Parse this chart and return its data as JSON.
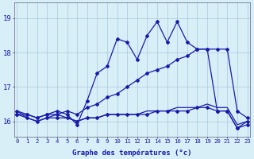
{
  "xlabel": "Graphe des températures (°c)",
  "hours": [
    0,
    1,
    2,
    3,
    4,
    5,
    6,
    7,
    8,
    9,
    10,
    11,
    12,
    13,
    14,
    15,
    16,
    17,
    18,
    19,
    20,
    21,
    22,
    23
  ],
  "line1_spiky": [
    16.3,
    16.2,
    16.1,
    16.2,
    16.3,
    16.2,
    15.9,
    16.6,
    17.4,
    17.6,
    18.4,
    18.3,
    17.8,
    18.5,
    18.9,
    18.3,
    18.9,
    18.3,
    18.1,
    18.1,
    16.3,
    16.3,
    15.8,
    16.0
  ],
  "line2_diag": [
    16.2,
    16.2,
    16.1,
    16.2,
    16.2,
    16.3,
    16.2,
    16.4,
    16.5,
    16.7,
    16.8,
    17.0,
    17.2,
    17.4,
    17.5,
    17.6,
    17.8,
    17.9,
    18.1,
    18.1,
    18.1,
    18.1,
    16.3,
    16.1
  ],
  "line3_flat1": [
    16.2,
    16.1,
    16.0,
    16.1,
    16.1,
    16.1,
    16.0,
    16.1,
    16.1,
    16.2,
    16.2,
    16.2,
    16.2,
    16.2,
    16.3,
    16.3,
    16.3,
    16.3,
    16.4,
    16.4,
    16.3,
    16.3,
    15.8,
    15.9
  ],
  "line4_flat2": [
    16.3,
    16.1,
    16.0,
    16.1,
    16.2,
    16.1,
    16.0,
    16.1,
    16.1,
    16.2,
    16.2,
    16.2,
    16.2,
    16.3,
    16.3,
    16.3,
    16.4,
    16.4,
    16.4,
    16.5,
    16.4,
    16.4,
    15.9,
    16.0
  ],
  "line_color": "#1a1aaa",
  "bg_color": "#d8eff8",
  "grid_color": "#aac8d8",
  "ylim": [
    15.55,
    19.45
  ],
  "yticks": [
    16,
    17,
    18,
    19
  ],
  "marker": "D",
  "marker_size": 2.0,
  "linewidth": 0.9
}
